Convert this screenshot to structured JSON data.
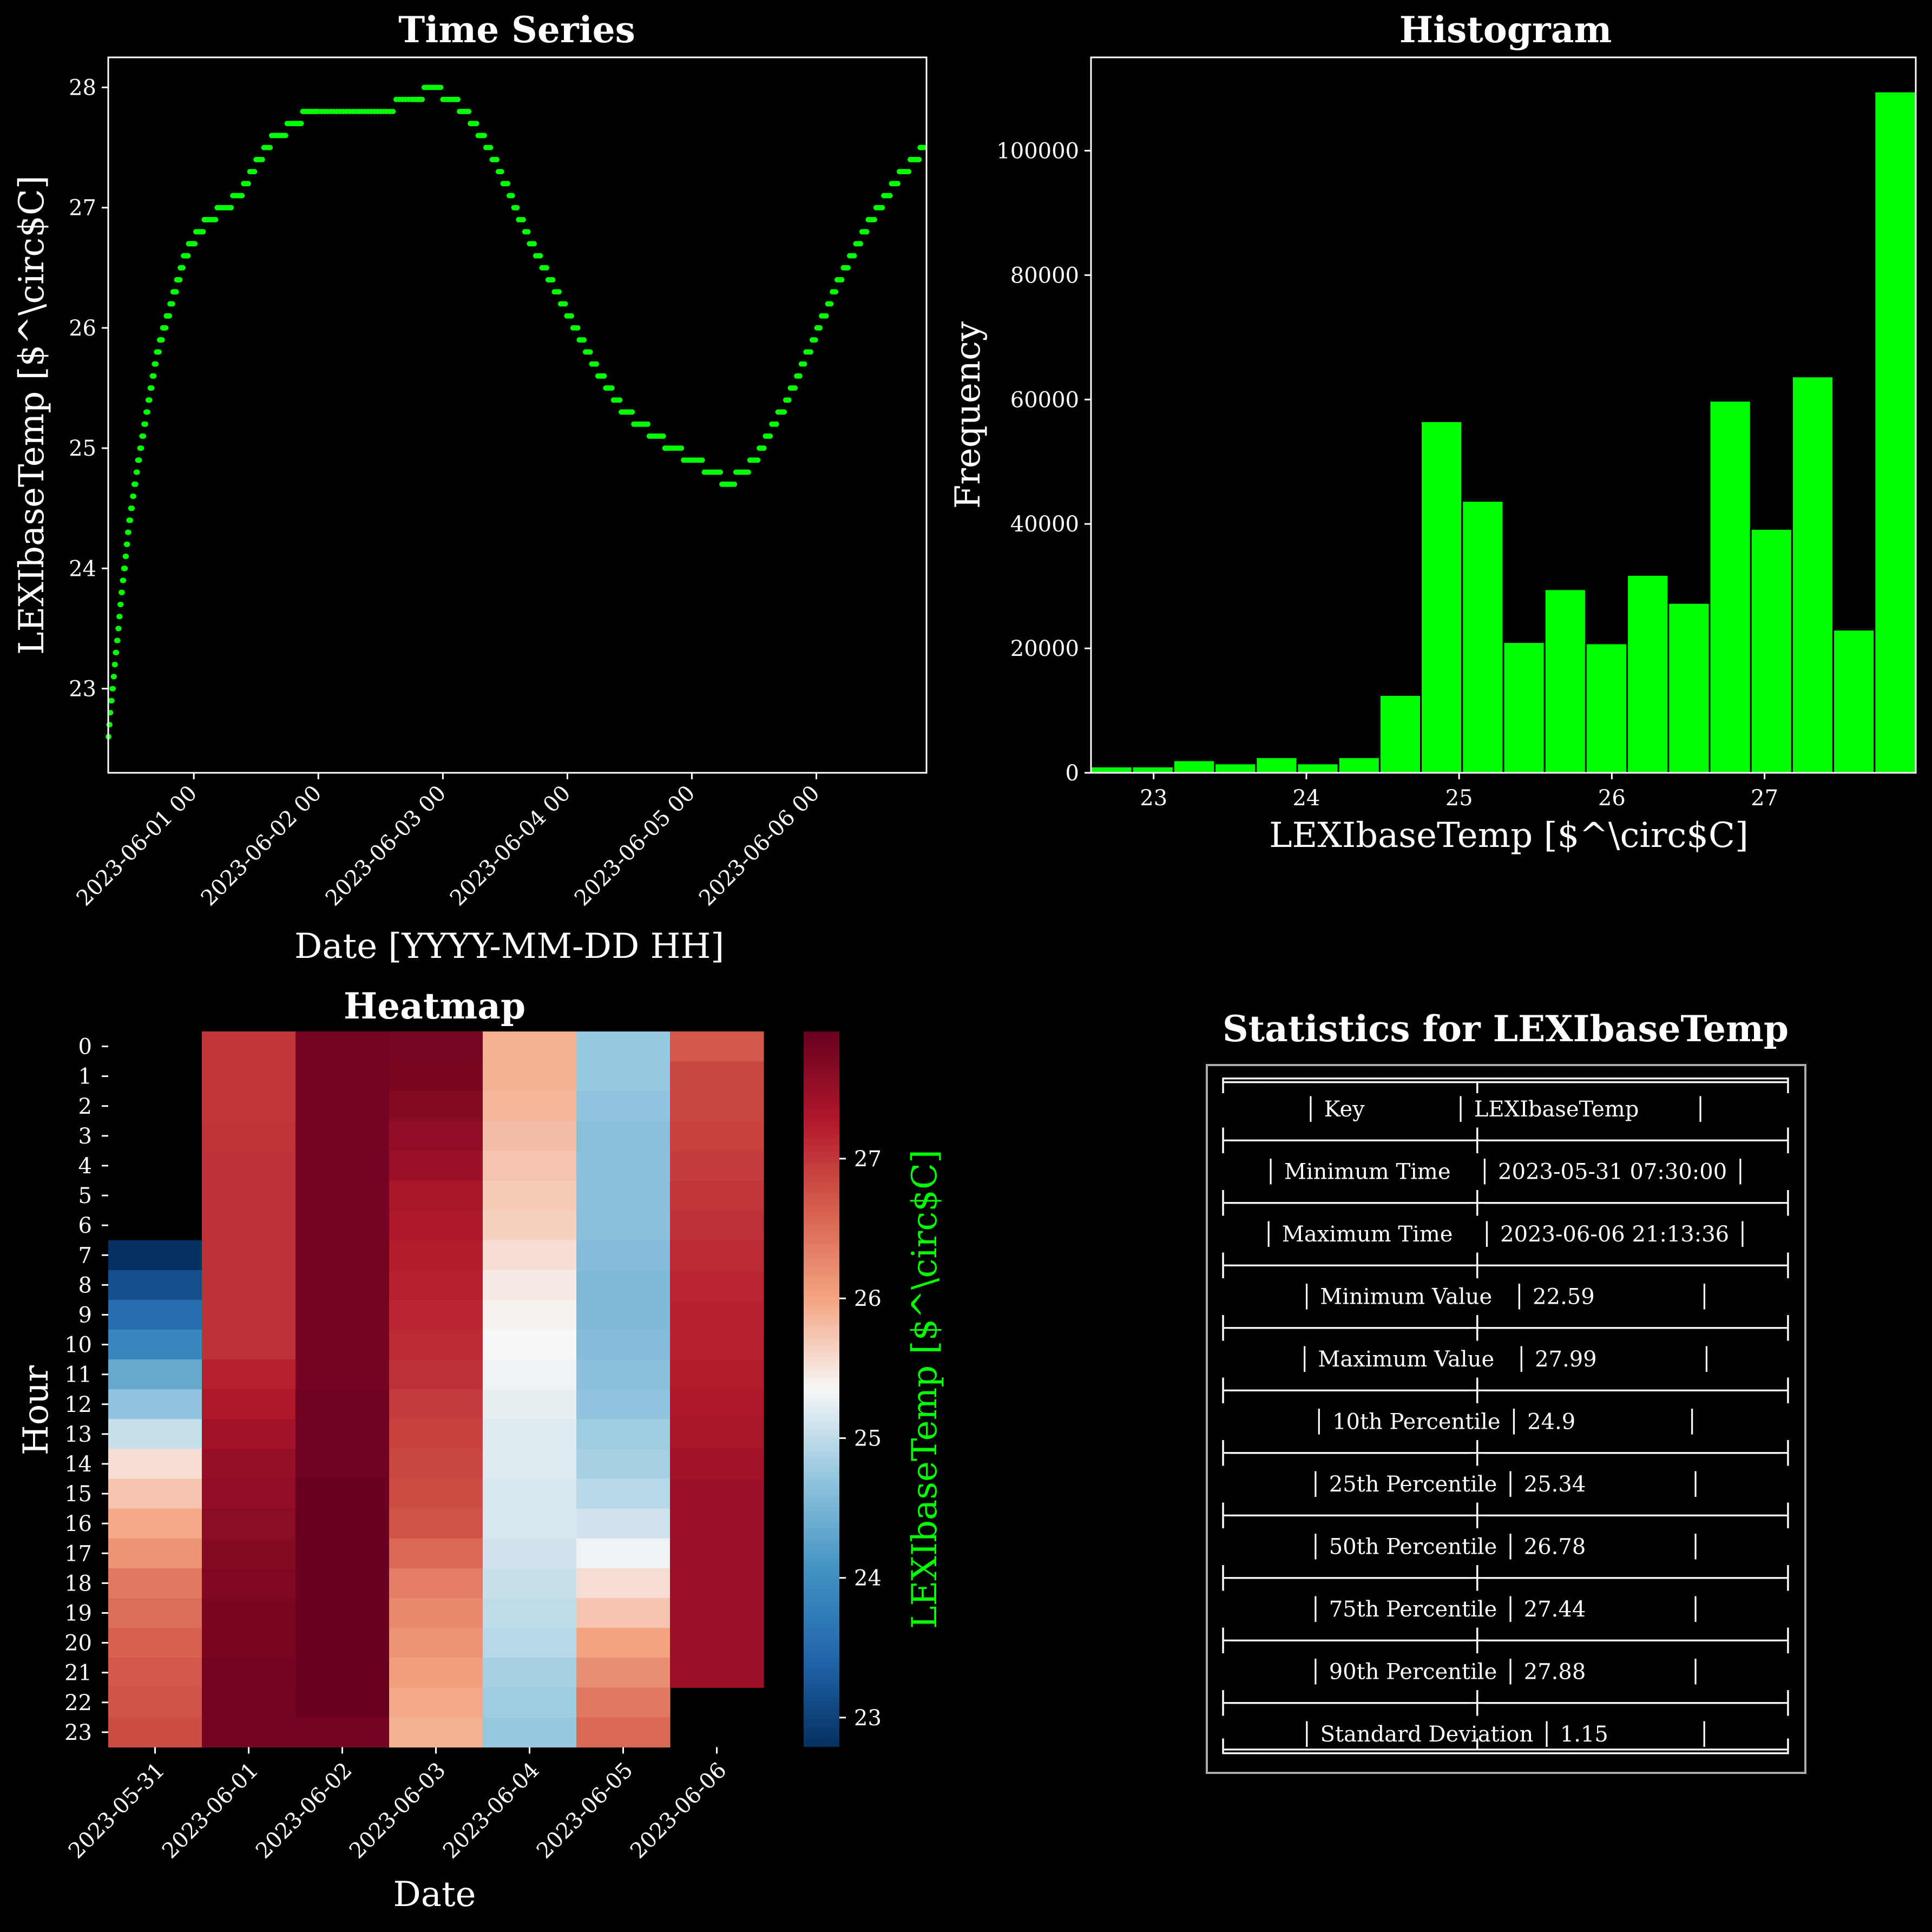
{
  "chart_data": [
    {
      "type": "scatter",
      "title": "Time Series",
      "xlabel": "Date [YYYY-MM-DD HH]",
      "ylabel": "LEXIbaseTemp [$^\\circ$C]",
      "x_tick_labels": [
        "2023-06-01 00",
        "2023-06-02 00",
        "2023-06-03 00",
        "2023-06-04 00",
        "2023-06-05 00",
        "2023-06-06 00"
      ],
      "y_tick_labels": [
        "23",
        "24",
        "25",
        "26",
        "27",
        "28"
      ],
      "xlim": [
        "2023-05-31 07:30:00",
        "2023-06-06 21:13:36"
      ],
      "ylim": [
        22.3,
        28.25
      ],
      "marker_color": "#00ff00",
      "series": [
        {
          "x": [
            "2023-05-31 07:30",
            "2023-05-31 08:00",
            "2023-05-31 08:30",
            "2023-05-31 09:00",
            "2023-05-31 09:30",
            "2023-05-31 10:00",
            "2023-05-31 10:30",
            "2023-05-31 11:00",
            "2023-05-31 11:30",
            "2023-05-31 12:00",
            "2023-05-31 13:00",
            "2023-05-31 14:00",
            "2023-05-31 15:00",
            "2023-05-31 16:00",
            "2023-05-31 17:00",
            "2023-05-31 18:00",
            "2023-05-31 19:00",
            "2023-05-31 20:00",
            "2023-05-31 21:00",
            "2023-05-31 22:00",
            "2023-05-31 23:00",
            "2023-06-01 01:00",
            "2023-06-01 03:00",
            "2023-06-01 06:00",
            "2023-06-01 09:00",
            "2023-06-01 12:00",
            "2023-06-01 15:00",
            "2023-06-01 18:00",
            "2023-06-01 21:00",
            "2023-06-02 00:00",
            "2023-06-02 06:00",
            "2023-06-02 12:00",
            "2023-06-02 18:00",
            "2023-06-02 22:00",
            "2023-06-03 02:00",
            "2023-06-03 05:00",
            "2023-06-03 08:00",
            "2023-06-03 11:00",
            "2023-06-03 14:00",
            "2023-06-03 17:00",
            "2023-06-03 20:00",
            "2023-06-03 23:00",
            "2023-06-04 02:00",
            "2023-06-04 05:00",
            "2023-06-04 08:00",
            "2023-06-04 11:00",
            "2023-06-04 14:00",
            "2023-06-04 17:00",
            "2023-06-04 20:00",
            "2023-06-05 00:00",
            "2023-06-05 04:00",
            "2023-06-05 07:00",
            "2023-06-05 10:00",
            "2023-06-05 13:00",
            "2023-06-05 16:00",
            "2023-06-05 19:00",
            "2023-06-05 22:00",
            "2023-06-06 01:00",
            "2023-06-06 04:00",
            "2023-06-06 07:00",
            "2023-06-06 10:00",
            "2023-06-06 13:00",
            "2023-06-06 16:00",
            "2023-06-06 19:00",
            "2023-06-06 21:00"
          ],
          "y": [
            22.59,
            22.85,
            23.05,
            23.3,
            23.5,
            23.75,
            23.95,
            24.15,
            24.35,
            24.5,
            24.8,
            25.05,
            25.3,
            25.55,
            25.8,
            25.95,
            26.1,
            26.25,
            26.4,
            26.55,
            26.65,
            26.8,
            26.9,
            27.0,
            27.1,
            27.35,
            27.55,
            27.65,
            27.75,
            27.8,
            27.75,
            27.8,
            27.9,
            27.99,
            27.9,
            27.75,
            27.55,
            27.3,
            27.0,
            26.7,
            26.45,
            26.2,
            25.95,
            25.7,
            25.5,
            25.3,
            25.2,
            25.1,
            25.0,
            24.9,
            24.8,
            24.7,
            24.8,
            24.95,
            25.2,
            25.45,
            25.75,
            26.05,
            26.35,
            26.6,
            26.85,
            27.05,
            27.25,
            27.4,
            27.5
          ]
        }
      ]
    },
    {
      "type": "bar",
      "title": "Histogram",
      "xlabel": "LEXIbaseTemp [$^\\circ$C]",
      "ylabel": "Frequency",
      "x_tick_labels": [
        "23",
        "24",
        "25",
        "26",
        "27"
      ],
      "y_tick_labels": [
        "0",
        "20000",
        "40000",
        "60000",
        "80000",
        "100000"
      ],
      "xlim": [
        22.59,
        27.99
      ],
      "ylim": [
        0,
        115000
      ],
      "bar_color": "#00ff00",
      "bin_edges": [
        22.59,
        22.86,
        23.13,
        23.4,
        23.67,
        23.94,
        24.21,
        24.48,
        24.75,
        25.02,
        25.29,
        25.56,
        25.83,
        26.1,
        26.37,
        26.64,
        26.91,
        27.18,
        27.45,
        27.72,
        27.99
      ],
      "values": [
        1000,
        1000,
        2000,
        1500,
        2500,
        1500,
        2500,
        12500,
        56500,
        43700,
        21000,
        29500,
        20800,
        31800,
        27300,
        59800,
        39200,
        63700,
        23000,
        109500
      ]
    },
    {
      "type": "heatmap",
      "title": "Heatmap",
      "xlabel": "Date",
      "ylabel": "Hour",
      "colorbar_label": "LEXIbaseTemp [$^\\circ$C]",
      "colorbar_ticks": [
        "23",
        "24",
        "25",
        "26",
        "27"
      ],
      "colorbar_range": [
        22.79,
        27.91
      ],
      "colormap": "RdBu_r",
      "columns": [
        "2023-05-31",
        "2023-06-01",
        "2023-06-02",
        "2023-06-03",
        "2023-06-04",
        "2023-06-05",
        "2023-06-06"
      ],
      "rows": [
        "0",
        "1",
        "2",
        "3",
        "4",
        "5",
        "6",
        "7",
        "8",
        "9",
        "10",
        "11",
        "12",
        "13",
        "14",
        "15",
        "16",
        "17",
        "18",
        "19",
        "20",
        "21",
        "22",
        "23"
      ],
      "values": [
        [
          null,
          27.0,
          27.8,
          27.78,
          25.9,
          24.75,
          26.7
        ],
        [
          null,
          27.0,
          27.8,
          27.75,
          25.9,
          24.75,
          26.85
        ],
        [
          null,
          27.0,
          27.8,
          27.65,
          25.85,
          24.7,
          26.85
        ],
        [
          null,
          27.02,
          27.8,
          27.55,
          25.8,
          24.65,
          26.9
        ],
        [
          null,
          27.05,
          27.8,
          27.45,
          25.75,
          24.65,
          26.95
        ],
        [
          null,
          27.05,
          27.8,
          27.35,
          25.7,
          24.65,
          27.0
        ],
        [
          null,
          27.05,
          27.8,
          27.3,
          25.65,
          24.65,
          27.05
        ],
        [
          22.79,
          27.05,
          27.8,
          27.25,
          25.55,
          24.6,
          27.1
        ],
        [
          23.15,
          27.05,
          27.8,
          27.2,
          25.45,
          24.55,
          27.15
        ],
        [
          23.55,
          27.05,
          27.8,
          27.15,
          25.4,
          24.55,
          27.18
        ],
        [
          23.9,
          27.05,
          27.8,
          27.1,
          25.35,
          24.6,
          27.2
        ],
        [
          24.35,
          27.2,
          27.8,
          27.05,
          25.3,
          24.65,
          27.25
        ],
        [
          24.7,
          27.3,
          27.85,
          26.95,
          25.25,
          24.7,
          27.3
        ],
        [
          25.05,
          27.4,
          27.85,
          26.9,
          25.2,
          24.8,
          27.35
        ],
        [
          25.55,
          27.5,
          27.85,
          26.85,
          25.2,
          24.85,
          27.4
        ],
        [
          25.75,
          27.55,
          27.9,
          26.8,
          25.15,
          24.95,
          27.45
        ],
        [
          25.95,
          27.6,
          27.9,
          26.75,
          25.15,
          25.1,
          27.45
        ],
        [
          26.15,
          27.65,
          27.9,
          26.55,
          25.1,
          25.3,
          27.45
        ],
        [
          26.4,
          27.7,
          27.9,
          26.35,
          25.05,
          25.55,
          27.45
        ],
        [
          26.5,
          27.75,
          27.9,
          26.25,
          25.0,
          25.75,
          27.45
        ],
        [
          26.6,
          27.75,
          27.9,
          26.15,
          24.95,
          26.0,
          27.45
        ],
        [
          26.7,
          27.8,
          27.91,
          26.05,
          24.85,
          26.2,
          27.45
        ],
        [
          26.75,
          27.8,
          27.9,
          25.95,
          24.8,
          26.4,
          null
        ],
        [
          26.8,
          27.8,
          27.8,
          25.9,
          24.75,
          26.55,
          null
        ]
      ]
    },
    {
      "type": "table",
      "title": "Statistics for LEXIbaseTemp",
      "border": "╒═════════════════╤═════════════════════╕",
      "separator": "├─────────────────┼─────────────────────┤",
      "bottom_border": "╘═════════════════╧═════════════════════╛",
      "rows": [
        {
          "line": "│ Key             │ LEXIbaseTemp        │"
        },
        {
          "line": "│ Minimum Time    │ 2023-05-31 07:30:00 │"
        },
        {
          "line": "│ Maximum Time    │ 2023-06-06 21:13:36 │"
        },
        {
          "line": "│ Minimum Value   │ 22.59               │"
        },
        {
          "line": "│ Maximum Value   │ 27.99               │"
        },
        {
          "line": "│ 10th Percentile │ 24.9                │"
        },
        {
          "line": "│ 25th Percentile │ 25.34               │"
        },
        {
          "line": "│ 50th Percentile │ 26.78               │"
        },
        {
          "line": "│ 75th Percentile │ 27.44               │"
        },
        {
          "line": "│ 90th Percentile │ 27.88               │"
        },
        {
          "line": "│ Standard Deviation │ 1.15             │"
        }
      ]
    }
  ]
}
